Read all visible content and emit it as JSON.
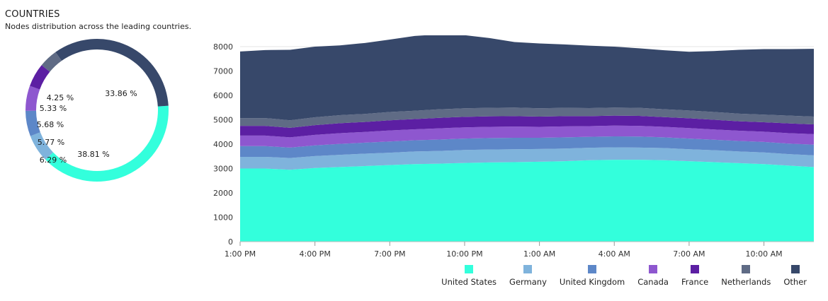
{
  "header": {
    "title": "COUNTRIES",
    "subtitle": "Nodes distribution across the leading countries."
  },
  "chart_data": [
    {
      "type": "pie",
      "variant": "donut",
      "slices": [
        {
          "name": "United States",
          "value": 38.81,
          "label": "38.81 %",
          "color": "#33ffdc"
        },
        {
          "name": "Germany",
          "value": 6.29,
          "label": "6.29 %",
          "color": "#7fb3dc"
        },
        {
          "name": "United Kingdom",
          "value": 5.77,
          "label": "5.77 %",
          "color": "#5d87c8"
        },
        {
          "name": "Canada",
          "value": 5.68,
          "label": "5.68 %",
          "color": "#8e57cf"
        },
        {
          "name": "France",
          "value": 5.33,
          "label": "5.33 %",
          "color": "#5c1fa3"
        },
        {
          "name": "Netherlands",
          "value": 4.25,
          "label": "4.25 %",
          "color": "#5f6b85"
        },
        {
          "name": "Other",
          "value": 33.86,
          "label": "33.86 %",
          "color": "#37486a"
        }
      ]
    },
    {
      "type": "area",
      "stacked": true,
      "x": [
        "1:00 PM",
        "2:00 PM",
        "3:00 PM",
        "4:00 PM",
        "5:00 PM",
        "6:00 PM",
        "7:00 PM",
        "8:00 PM",
        "9:00 PM",
        "10:00 PM",
        "11:00 PM",
        "12:00 AM",
        "1:00 AM",
        "2:00 AM",
        "3:00 AM",
        "4:00 AM",
        "5:00 AM",
        "6:00 AM",
        "7:00 AM",
        "8:00 AM",
        "9:00 AM",
        "10:00 AM",
        "11:00 AM",
        "12:00 PM"
      ],
      "xticks": [
        "1:00 PM",
        "4:00 PM",
        "7:00 PM",
        "10:00 PM",
        "1:00 AM",
        "4:00 AM",
        "7:00 AM",
        "10:00 AM"
      ],
      "ylim": [
        0,
        8000
      ],
      "yticks": [
        0,
        1000,
        2000,
        3000,
        4000,
        5000,
        6000,
        7000,
        8000
      ],
      "series": [
        {
          "name": "United States",
          "color": "#33ffdc",
          "values": [
            3000,
            3000,
            2950,
            3020,
            3060,
            3100,
            3140,
            3180,
            3200,
            3230,
            3250,
            3260,
            3280,
            3300,
            3340,
            3360,
            3360,
            3340,
            3300,
            3260,
            3220,
            3180,
            3120,
            3060
          ]
        },
        {
          "name": "Germany",
          "color": "#7fb3dc",
          "values": [
            480,
            480,
            480,
            490,
            500,
            510,
            510,
            520,
            520,
            530,
            530,
            530,
            520,
            520,
            510,
            510,
            500,
            500,
            490,
            490,
            480,
            480,
            470,
            480
          ]
        },
        {
          "name": "United Kingdom",
          "color": "#5d87c8",
          "values": [
            440,
            440,
            430,
            440,
            450,
            450,
            460,
            460,
            470,
            470,
            470,
            470,
            460,
            460,
            450,
            450,
            450,
            440,
            440,
            430,
            430,
            430,
            430,
            440
          ]
        },
        {
          "name": "Canada",
          "color": "#8e57cf",
          "values": [
            430,
            430,
            420,
            430,
            440,
            440,
            450,
            450,
            460,
            460,
            460,
            460,
            450,
            450,
            440,
            440,
            440,
            430,
            430,
            420,
            420,
            420,
            430,
            430
          ]
        },
        {
          "name": "France",
          "color": "#5c1fa3",
          "values": [
            400,
            400,
            390,
            400,
            410,
            410,
            420,
            420,
            430,
            430,
            430,
            430,
            420,
            420,
            410,
            410,
            410,
            400,
            400,
            400,
            390,
            390,
            400,
            400
          ]
        },
        {
          "name": "Netherlands",
          "color": "#5f6b85",
          "values": [
            320,
            320,
            310,
            320,
            330,
            330,
            340,
            340,
            350,
            350,
            350,
            350,
            340,
            340,
            330,
            330,
            330,
            320,
            320,
            320,
            310,
            310,
            320,
            320
          ]
        },
        {
          "name": "Other",
          "color": "#37486a",
          "values": [
            2730,
            2790,
            2890,
            2900,
            2860,
            2910,
            2970,
            3070,
            3070,
            3000,
            2860,
            2690,
            2660,
            2600,
            2560,
            2500,
            2440,
            2420,
            2410,
            2500,
            2620,
            2690,
            2730,
            2780
          ]
        }
      ],
      "legend": "bottom-right"
    }
  ]
}
